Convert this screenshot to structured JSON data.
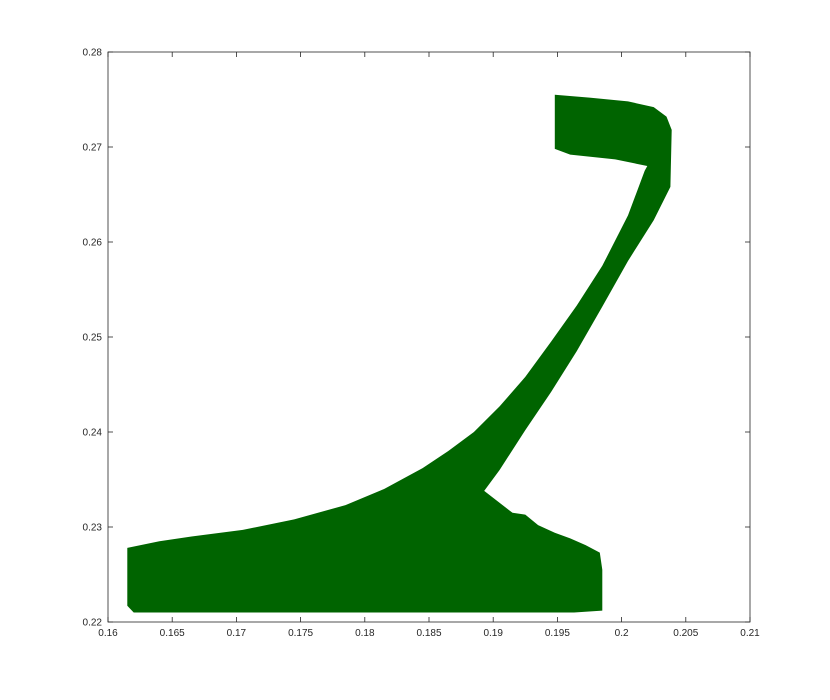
{
  "chart_data": {
    "type": "area",
    "title": "",
    "xlabel": "",
    "ylabel": "",
    "xlim": [
      0.16,
      0.21
    ],
    "ylim": [
      0.22,
      0.28
    ],
    "grid": false,
    "x_ticks": [
      {
        "value": 0.16,
        "label": "0.16"
      },
      {
        "value": 0.165,
        "label": "0.165"
      },
      {
        "value": 0.17,
        "label": "0.17"
      },
      {
        "value": 0.175,
        "label": "0.175"
      },
      {
        "value": 0.18,
        "label": "0.18"
      },
      {
        "value": 0.185,
        "label": "0.185"
      },
      {
        "value": 0.19,
        "label": "0.19"
      },
      {
        "value": 0.195,
        "label": "0.195"
      },
      {
        "value": 0.2,
        "label": "0.2"
      },
      {
        "value": 0.205,
        "label": "0.205"
      },
      {
        "value": 0.21,
        "label": "0.21"
      }
    ],
    "y_ticks": [
      {
        "value": 0.22,
        "label": "0.22"
      },
      {
        "value": 0.23,
        "label": "0.23"
      },
      {
        "value": 0.24,
        "label": "0.24"
      },
      {
        "value": 0.25,
        "label": "0.25"
      },
      {
        "value": 0.26,
        "label": "0.26"
      },
      {
        "value": 0.27,
        "label": "0.27"
      },
      {
        "value": 0.28,
        "label": "0.28"
      }
    ],
    "series": [
      {
        "color": "#006400",
        "x": [
          0.1948,
          0.1975,
          0.2005,
          0.2025,
          0.2035,
          0.2039,
          0.2038,
          0.2025,
          0.2005,
          0.1985,
          0.1965,
          0.1945,
          0.1925,
          0.1905,
          0.1893,
          0.1915,
          0.1925,
          0.1935,
          0.1948,
          0.196,
          0.1972,
          0.1983,
          0.1985,
          0.1985,
          0.1963,
          0.1845,
          0.162,
          0.1615,
          0.1615,
          0.164,
          0.1665,
          0.1705,
          0.1745,
          0.1785,
          0.1815,
          0.1845,
          0.1865,
          0.1885,
          0.1905,
          0.1925,
          0.1945,
          0.1965,
          0.1985,
          0.2005,
          0.2018,
          0.202,
          0.1995,
          0.196,
          0.1948
        ],
        "y": [
          0.2755,
          0.2752,
          0.2748,
          0.2742,
          0.2732,
          0.2718,
          0.2658,
          0.2623,
          0.258,
          0.2532,
          0.2485,
          0.2442,
          0.2402,
          0.236,
          0.2338,
          0.2315,
          0.2313,
          0.2302,
          0.2294,
          0.2288,
          0.2281,
          0.2273,
          0.2255,
          0.2212,
          0.221,
          0.221,
          0.221,
          0.2217,
          0.2278,
          0.2285,
          0.229,
          0.2297,
          0.2308,
          0.2323,
          0.234,
          0.2362,
          0.238,
          0.24,
          0.2427,
          0.2458,
          0.2495,
          0.2533,
          0.2575,
          0.2628,
          0.2675,
          0.268,
          0.2687,
          0.2692,
          0.2698
        ]
      }
    ]
  }
}
